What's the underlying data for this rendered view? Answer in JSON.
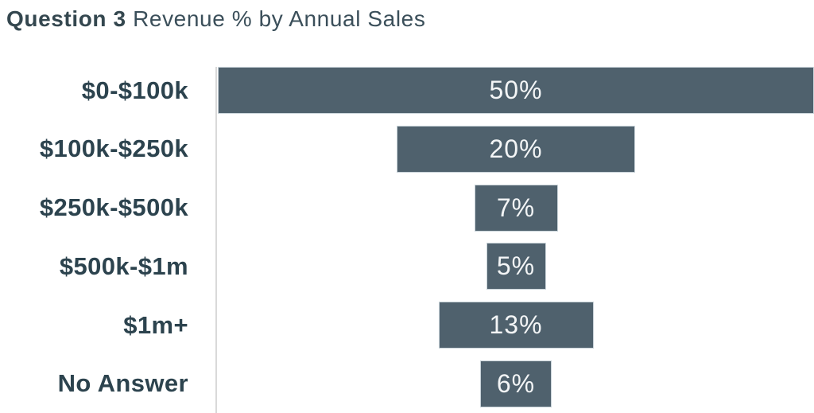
{
  "title": {
    "bold": "Question 3",
    "rest": " Revenue % by Annual Sales"
  },
  "colors": {
    "bar_fill": "#4f616d",
    "bar_border": "#c9d3d9",
    "category_label": "#2c434e",
    "title_text": "#3b4f5a",
    "axis_line": "#d9d9d9",
    "value_text": "#f3f5f6",
    "background": "#ffffff"
  },
  "chart_data": {
    "type": "bar",
    "orientation": "horizontal",
    "bar_alignment": "center-funnel",
    "title": "Question 3 Revenue % by Annual Sales",
    "categories": [
      "$0-$100k",
      "$100k-$250k",
      "$250k-$500k",
      "$500k-$1m",
      "$1m+",
      "No Answer"
    ],
    "values": [
      50,
      20,
      7,
      5,
      13,
      6
    ],
    "value_labels": [
      "50%",
      "20%",
      "7%",
      "5%",
      "13%",
      "6%"
    ],
    "xlabel": "",
    "ylabel": "",
    "xmax": 50,
    "grid": false,
    "legend": false,
    "value_label_position": "inside-center",
    "axis_line_side": "left"
  }
}
